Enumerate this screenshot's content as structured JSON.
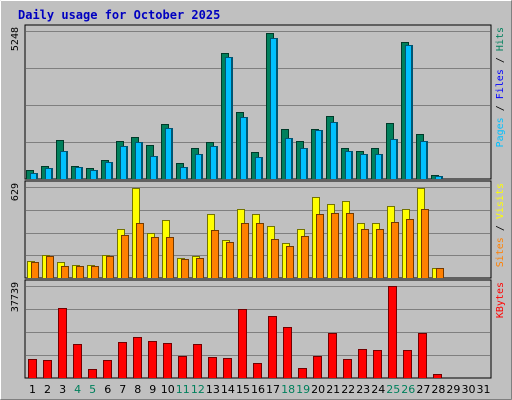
{
  "title": "Daily usage for October 2025",
  "colors": {
    "background": "#c0c0c0",
    "plot_bg": "#c0c0c0",
    "grid": "#7f7f7f",
    "title": "#0000c0",
    "hits": "#00805c",
    "files": "#00c0ff",
    "pages": "#00c0ff",
    "visits": "#ffff00",
    "sites": "#ff8000",
    "kbytes": "#ff0000",
    "weekday": "#000000",
    "weekend": "#00805c"
  },
  "chart_data": [
    {
      "type": "bar",
      "panel": "hits-files-pages",
      "max_label": "5248",
      "ylim": [
        0,
        5248
      ],
      "categories": [
        "1",
        "2",
        "3",
        "4",
        "5",
        "6",
        "7",
        "8",
        "9",
        "10",
        "11",
        "12",
        "13",
        "14",
        "15",
        "16",
        "17",
        "18",
        "19",
        "20",
        "21",
        "22",
        "23",
        "24",
        "25",
        "26",
        "27",
        "28",
        "29",
        "30",
        "31"
      ],
      "right_label": [
        {
          "text": "Pages",
          "color": "#00c0ff"
        },
        {
          "text": " / ",
          "color": "#000000"
        },
        {
          "text": "Files",
          "color": "#0000ff"
        },
        {
          "text": " / ",
          "color": "#000000"
        },
        {
          "text": "Hits",
          "color": "#00805c"
        }
      ],
      "series": [
        {
          "name": "Hits",
          "color": "#00805c",
          "values": [
            330,
            460,
            1400,
            460,
            400,
            690,
            1330,
            1490,
            1190,
            1960,
            580,
            1110,
            1310,
            4460,
            2360,
            950,
            5160,
            1790,
            1350,
            1780,
            2220,
            1100,
            1000,
            1110,
            1990,
            4850,
            1600,
            130,
            0,
            0,
            0
          ]
        },
        {
          "name": "Files",
          "color": "#00c0ff",
          "values": [
            230,
            380,
            1010,
            420,
            320,
            600,
            1180,
            1300,
            830,
            1800,
            420,
            900,
            1180,
            4320,
            2190,
            790,
            5000,
            1470,
            1110,
            1730,
            2030,
            1000,
            870,
            890,
            1410,
            4750,
            1340,
            110,
            0,
            0,
            0
          ]
        },
        {
          "name": "Pages",
          "color": "#00c0ff",
          "values": [
            230,
            380,
            1010,
            420,
            320,
            600,
            1180,
            1300,
            830,
            1800,
            420,
            900,
            1180,
            4320,
            2190,
            790,
            5000,
            1470,
            1110,
            1730,
            2030,
            1000,
            870,
            890,
            1410,
            4750,
            1340,
            110,
            0,
            0,
            0
          ]
        }
      ]
    },
    {
      "type": "bar",
      "panel": "visits-sites",
      "max_label": "629",
      "ylim": [
        0,
        629
      ],
      "categories": [
        "1",
        "2",
        "3",
        "4",
        "5",
        "6",
        "7",
        "8",
        "9",
        "10",
        "11",
        "12",
        "13",
        "14",
        "15",
        "16",
        "17",
        "18",
        "19",
        "20",
        "21",
        "22",
        "23",
        "24",
        "25",
        "26",
        "27",
        "28",
        "29",
        "30",
        "31"
      ],
      "right_label": [
        {
          "text": "Sites",
          "color": "#ff8000"
        },
        {
          "text": " / ",
          "color": "#000000"
        },
        {
          "text": "Visits",
          "color": "#ffff00"
        }
      ],
      "series": [
        {
          "name": "Visits",
          "color": "#ffff00",
          "values": [
            120,
            160,
            110,
            90,
            90,
            160,
            340,
            620,
            310,
            400,
            140,
            150,
            440,
            260,
            480,
            440,
            360,
            240,
            340,
            560,
            510,
            530,
            380,
            380,
            500,
            480,
            620,
            70,
            0,
            0,
            0
          ]
        },
        {
          "name": "Sites",
          "color": "#ff8000",
          "values": [
            110,
            150,
            80,
            80,
            80,
            150,
            300,
            380,
            280,
            280,
            130,
            140,
            330,
            250,
            380,
            380,
            270,
            220,
            290,
            440,
            450,
            450,
            340,
            340,
            390,
            410,
            480,
            70,
            0,
            0,
            0
          ]
        }
      ]
    },
    {
      "type": "bar",
      "panel": "kbytes",
      "max_label": "37739",
      "ylim": [
        0,
        37739
      ],
      "categories": [
        "1",
        "2",
        "3",
        "4",
        "5",
        "6",
        "7",
        "8",
        "9",
        "10",
        "11",
        "12",
        "13",
        "14",
        "15",
        "16",
        "17",
        "18",
        "19",
        "20",
        "21",
        "22",
        "23",
        "24",
        "25",
        "26",
        "27",
        "28",
        "29",
        "30",
        "31"
      ],
      "right_label": [
        {
          "text": "KBytes",
          "color": "#ff0000"
        }
      ],
      "series": [
        {
          "name": "KBytes",
          "color": "#ff0000",
          "values": [
            7900,
            7500,
            28600,
            13900,
            3600,
            7300,
            14900,
            17000,
            15100,
            14300,
            9200,
            14000,
            8800,
            8200,
            28200,
            6200,
            25600,
            21000,
            4300,
            9200,
            18600,
            7800,
            12100,
            11300,
            37700,
            11600,
            18600,
            1500,
            0,
            0,
            0
          ]
        }
      ]
    }
  ],
  "x_axis": {
    "labels": [
      "1",
      "2",
      "3",
      "4",
      "5",
      "6",
      "7",
      "8",
      "9",
      "10",
      "11",
      "12",
      "13",
      "14",
      "15",
      "16",
      "17",
      "18",
      "19",
      "20",
      "21",
      "22",
      "23",
      "24",
      "25",
      "26",
      "27",
      "28",
      "29",
      "30",
      "31"
    ],
    "weekend_days": [
      "4",
      "5",
      "11",
      "12",
      "18",
      "19",
      "25",
      "26"
    ]
  }
}
